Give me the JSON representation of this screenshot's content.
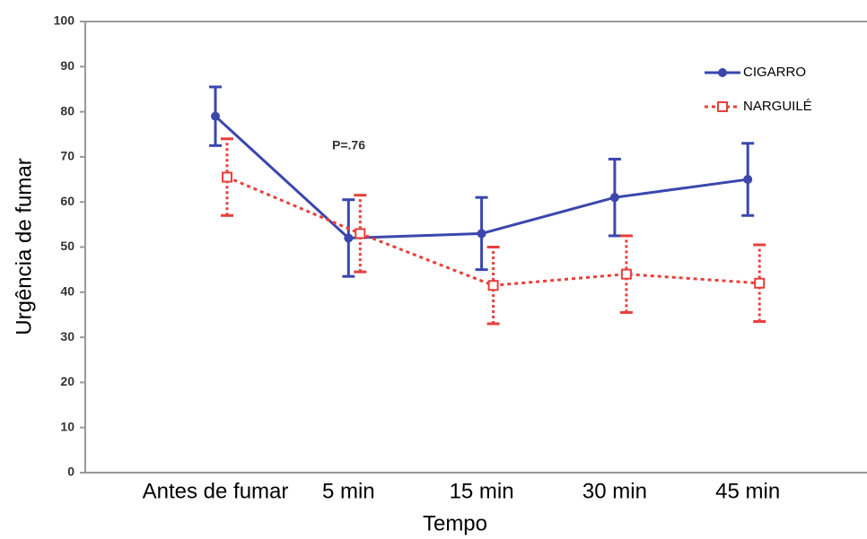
{
  "chart_data": {
    "type": "line",
    "x_label": "Tempo",
    "y_label": "Urgência de fumar",
    "annotation": "P=.76",
    "categories": [
      "Antes de fumar",
      "5 min",
      "15 min",
      "30 min",
      "45 min"
    ],
    "series": [
      {
        "name": "CIGARRO",
        "color": "#3b47ad",
        "values": [
          79,
          52,
          53,
          61,
          65
        ],
        "errors": [
          6.5,
          8.5,
          8,
          8.5,
          8
        ]
      },
      {
        "name": "NARGUILÉ",
        "color": "#e8403a",
        "values": [
          65.5,
          53,
          41.5,
          44,
          42
        ],
        "errors": [
          8.5,
          8.5,
          8.5,
          8.5,
          8.5
        ]
      }
    ],
    "ylim": [
      0,
      100
    ],
    "yticks": [
      0,
      10,
      20,
      30,
      40,
      50,
      60,
      70,
      80,
      90,
      100
    ],
    "legend": "top-right"
  }
}
